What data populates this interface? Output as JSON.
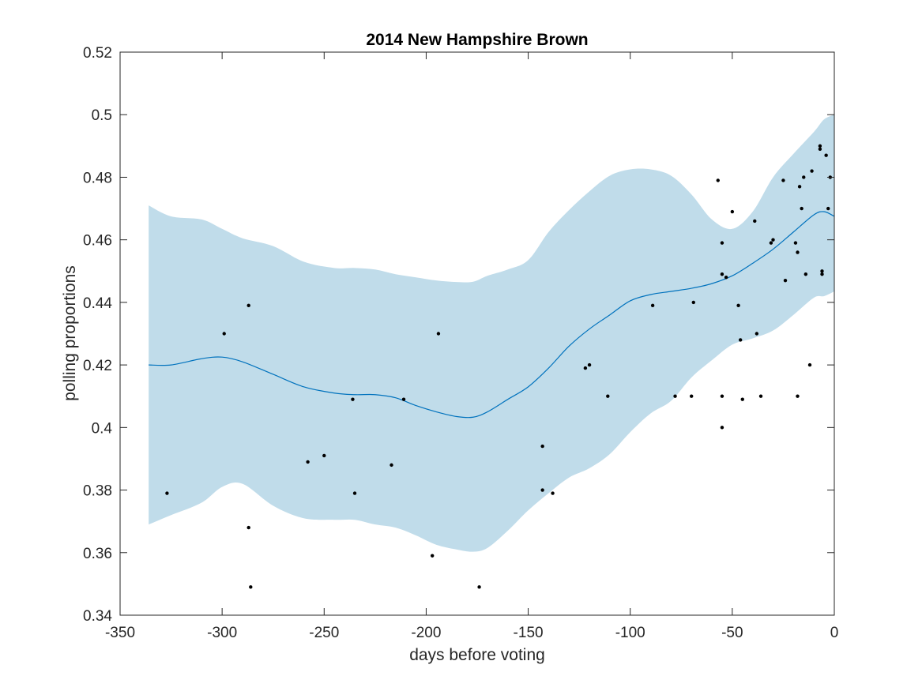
{
  "chart_data": {
    "type": "line",
    "title": "2014 New Hampshire Brown",
    "xlabel": "days before voting",
    "ylabel": "polling proportions",
    "xlim": [
      -350,
      0
    ],
    "ylim": [
      0.34,
      0.52
    ],
    "xticks": [
      -350,
      -300,
      -250,
      -200,
      -150,
      -100,
      -50,
      0
    ],
    "xtick_labels": [
      "-350",
      "-300",
      "-250",
      "-200",
      "-150",
      "-100",
      "-50",
      "0"
    ],
    "yticks": [
      0.34,
      0.36,
      0.38,
      0.4,
      0.42,
      0.44,
      0.46,
      0.48,
      0.5,
      0.52
    ],
    "ytick_labels": [
      "0.34",
      "0.36",
      "0.38",
      "0.4",
      "0.42",
      "0.44",
      "0.46",
      "0.48",
      "0.5",
      "0.52"
    ],
    "grid": false,
    "colors": {
      "band": "#c0dcea",
      "line": "#0072bd",
      "points": "#000000",
      "axes": "#262626"
    },
    "mean_line": {
      "x": [
        -336,
        -325,
        -310,
        -300,
        -290,
        -275,
        -260,
        -245,
        -235,
        -225,
        -215,
        -205,
        -195,
        -185,
        -177,
        -170,
        -160,
        -150,
        -140,
        -130,
        -120,
        -110,
        -100,
        -90,
        -80,
        -70,
        -60,
        -50,
        -40,
        -30,
        -20,
        -10,
        -5,
        0
      ],
      "y": [
        0.42,
        0.42,
        0.422,
        0.4225,
        0.421,
        0.417,
        0.413,
        0.411,
        0.4105,
        0.4105,
        0.4095,
        0.407,
        0.405,
        0.4035,
        0.4033,
        0.405,
        0.409,
        0.413,
        0.419,
        0.426,
        0.4315,
        0.436,
        0.4405,
        0.4425,
        0.4435,
        0.4445,
        0.446,
        0.4485,
        0.4525,
        0.457,
        0.4625,
        0.468,
        0.469,
        0.4675
      ]
    },
    "confidence_band": {
      "x": [
        -336,
        -325,
        -310,
        -300,
        -290,
        -275,
        -260,
        -245,
        -235,
        -225,
        -215,
        -205,
        -195,
        -185,
        -177,
        -170,
        -160,
        -150,
        -140,
        -130,
        -120,
        -110,
        -100,
        -90,
        -80,
        -70,
        -60,
        -50,
        -40,
        -30,
        -20,
        -10,
        -5,
        0
      ],
      "upper": [
        0.471,
        0.4675,
        0.4665,
        0.4635,
        0.4605,
        0.458,
        0.453,
        0.451,
        0.451,
        0.4505,
        0.449,
        0.448,
        0.447,
        0.4465,
        0.4466,
        0.4485,
        0.4505,
        0.4535,
        0.4625,
        0.4695,
        0.4755,
        0.4805,
        0.4825,
        0.4825,
        0.4805,
        0.4745,
        0.4665,
        0.4635,
        0.469,
        0.48,
        0.4875,
        0.4945,
        0.4985,
        0.5
      ],
      "lower": [
        0.369,
        0.372,
        0.376,
        0.381,
        0.382,
        0.375,
        0.371,
        0.3705,
        0.3705,
        0.369,
        0.368,
        0.3655,
        0.3625,
        0.361,
        0.3603,
        0.3615,
        0.367,
        0.3735,
        0.379,
        0.384,
        0.387,
        0.3915,
        0.3985,
        0.4045,
        0.4085,
        0.416,
        0.4215,
        0.4265,
        0.4285,
        0.431,
        0.436,
        0.4415,
        0.442,
        0.4435
      ]
    },
    "points": {
      "x": [
        -327,
        -299,
        -287,
        -287,
        -286,
        -258,
        -250,
        -236,
        -235,
        -217,
        -211,
        -197,
        -194,
        -174,
        -143,
        -143,
        -138,
        -122,
        -120,
        -111,
        -89,
        -78,
        -70,
        -69,
        -57,
        -55,
        -55,
        -55,
        -55,
        -53,
        -50,
        -47,
        -46,
        -45,
        -39,
        -38,
        -36,
        -31,
        -30,
        -25,
        -24,
        -19,
        -18,
        -18,
        -17,
        -16,
        -15,
        -14,
        -12,
        -11,
        -7,
        -7,
        -6,
        -6,
        -4,
        -3,
        -2
      ],
      "y": [
        0.379,
        0.43,
        0.439,
        0.368,
        0.349,
        0.389,
        0.391,
        0.409,
        0.379,
        0.388,
        0.409,
        0.359,
        0.43,
        0.349,
        0.394,
        0.38,
        0.379,
        0.419,
        0.42,
        0.41,
        0.439,
        0.41,
        0.41,
        0.44,
        0.479,
        0.459,
        0.449,
        0.41,
        0.4,
        0.448,
        0.469,
        0.439,
        0.428,
        0.409,
        0.466,
        0.43,
        0.41,
        0.459,
        0.46,
        0.479,
        0.447,
        0.459,
        0.456,
        0.41,
        0.477,
        0.47,
        0.48,
        0.449,
        0.42,
        0.482,
        0.49,
        0.489,
        0.45,
        0.449,
        0.487,
        0.47,
        0.48
      ]
    }
  }
}
